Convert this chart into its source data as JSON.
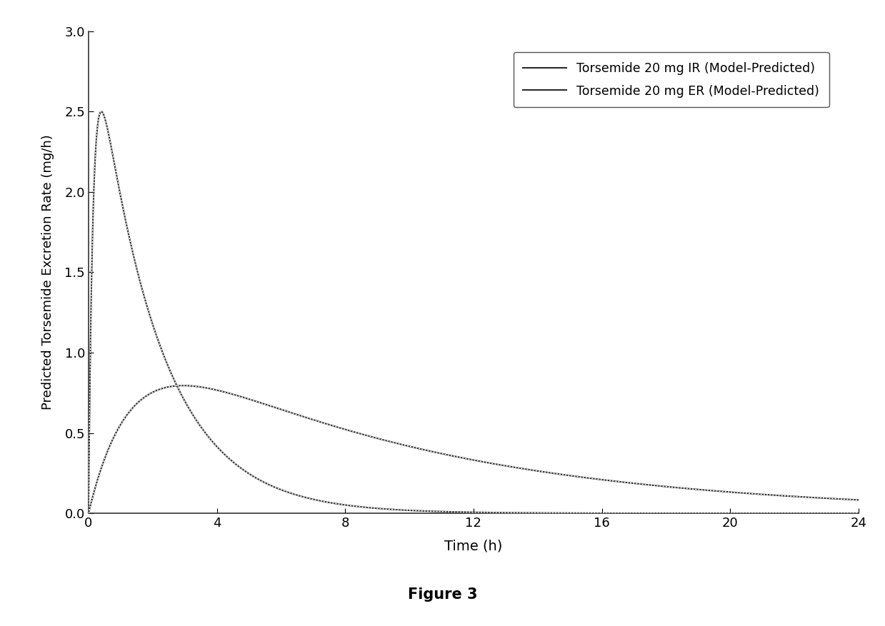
{
  "title": "Figure 3",
  "xlabel": "Time (h)",
  "ylabel": "Predicted Torsemide Excretion Rate (mg/h)",
  "xlim": [
    0,
    24
  ],
  "ylim": [
    0,
    3.0
  ],
  "xticks": [
    0,
    4,
    8,
    12,
    16,
    20,
    24
  ],
  "yticks": [
    0.0,
    0.5,
    1.0,
    1.5,
    2.0,
    2.5,
    3.0
  ],
  "legend_ir": "Torsemide 20 mg IR (Model-Predicted)",
  "legend_er": "Torsemide 20 mg ER (Model-Predicted)",
  "line_color": "#2a2a2a",
  "background_color": "#ffffff",
  "ir_ka": 7.0,
  "ir_ke": 0.52,
  "ir_peak": 2.5,
  "er_ka": 0.75,
  "er_ke": 0.115,
  "er_peak": 0.795
}
